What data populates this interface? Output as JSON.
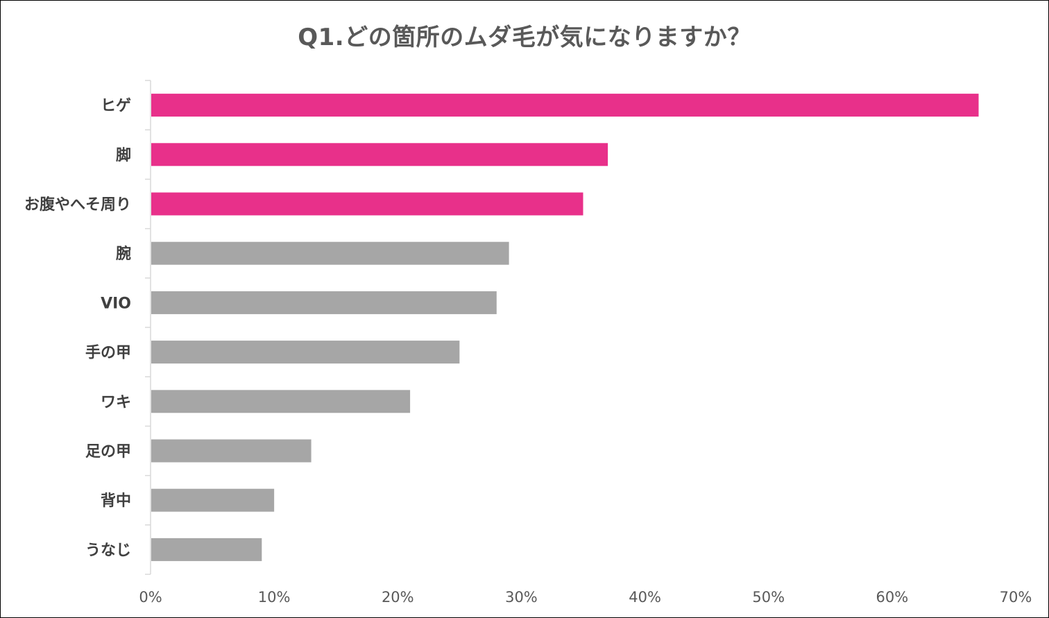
{
  "chart_data": {
    "type": "bar",
    "orientation": "horizontal",
    "title": "Q1.どの箇所のムダ毛が気になりますか？",
    "categories": [
      "ヒゲ",
      "脚",
      "お腹やへそ周り",
      "腕",
      "VIO",
      "手の甲",
      "ワキ",
      "足の甲",
      "背中",
      "うなじ"
    ],
    "values": [
      67,
      37,
      35,
      29,
      28,
      25,
      21,
      13,
      10,
      9
    ],
    "unit": "%",
    "xlim": [
      0,
      70
    ],
    "xticks": [
      0,
      10,
      20,
      30,
      40,
      50,
      60,
      70
    ],
    "xtick_labels": [
      "0%",
      "10%",
      "20%",
      "30%",
      "40%",
      "50%",
      "60%",
      "70%"
    ],
    "highlight_count": 3,
    "colors": {
      "highlight": "#E8308A",
      "default": "#A6A6A6",
      "axis": "#D9D9D9",
      "title": "#595959"
    },
    "grid": false,
    "legend": "none"
  }
}
